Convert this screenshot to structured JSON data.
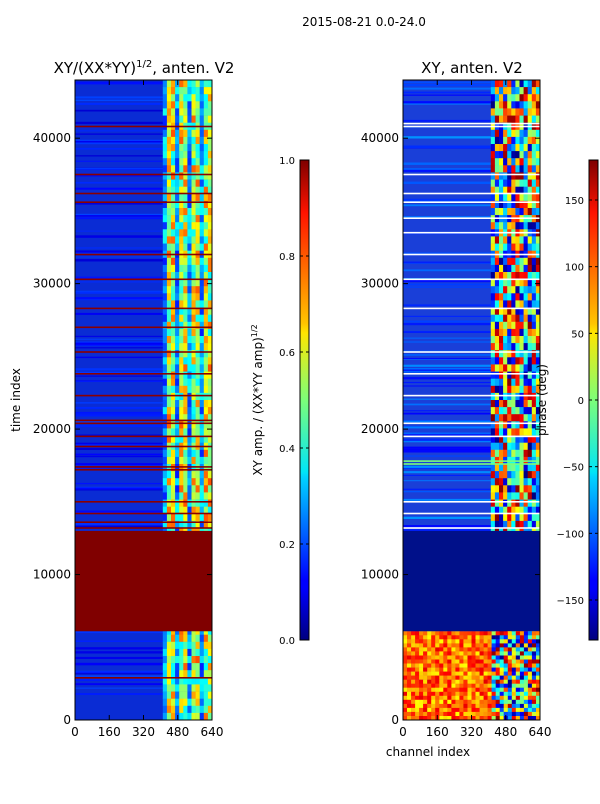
{
  "figure": {
    "suptitle": "2015-08-21 0.0-24.0"
  },
  "chart_data": [
    {
      "type": "heatmap",
      "title_main": "XY/(XX*YY)",
      "title_sup": "1/2",
      "title_tail": ", anten. V2",
      "xlabel": "",
      "ylabel": "time index",
      "xlim": [
        0,
        640
      ],
      "ylim": [
        0,
        44000
      ],
      "xticks": [
        "0",
        "160",
        "320",
        "480",
        "640"
      ],
      "yticks": [
        "0",
        "10000",
        "20000",
        "30000",
        "40000"
      ],
      "colorbar": {
        "ticks": [
          "0.0",
          "0.2",
          "0.4",
          "0.6",
          "0.8",
          "1.0"
        ],
        "label_main": "XY amp. / (XX*YY amp)",
        "label_sup": "1/2",
        "range": [
          0,
          1
        ]
      },
      "saturated_time_band": [
        6100,
        13000
      ],
      "saturated_value": 1.0,
      "active_channel_band": [
        410,
        640
      ],
      "flagged_rows": [
        2900,
        13200,
        13600,
        14200,
        15000,
        17200,
        17400,
        18800,
        19500,
        20400,
        20600,
        22300,
        23800,
        25300,
        27000,
        28300,
        30300,
        32000,
        35600,
        36200,
        37500,
        40800
      ]
    },
    {
      "type": "heatmap",
      "title_main": "XY, anten. V2",
      "xlabel": "channel index",
      "ylabel": "",
      "xlim": [
        0,
        640
      ],
      "ylim": [
        0,
        44000
      ],
      "xticks": [
        "0",
        "160",
        "320",
        "480",
        "640"
      ],
      "yticks": [
        "0",
        "10000",
        "20000",
        "30000",
        "40000"
      ],
      "colorbar": {
        "ticks": [
          "150",
          "100",
          "50",
          "0",
          "−50",
          "−100",
          "−150"
        ],
        "label_main": "phase (deg)",
        "range": [
          -180,
          180
        ]
      },
      "low_time_band": [
        6100,
        13000
      ],
      "noisy_time_band": [
        0,
        6100
      ],
      "active_channel_band": [
        410,
        640
      ],
      "flagged_rows": [
        13200,
        14200,
        15000,
        17600,
        17800,
        19500,
        20400,
        22300,
        23800,
        25300,
        28300,
        30300,
        32000,
        33500,
        34500,
        35600,
        36200,
        37500,
        40800,
        41000
      ]
    }
  ]
}
